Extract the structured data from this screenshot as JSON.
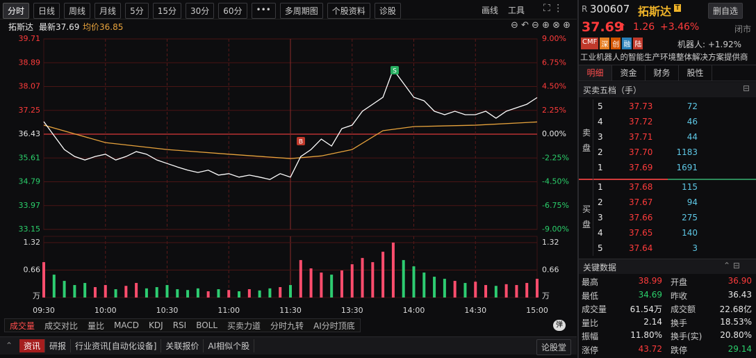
{
  "toolbar": {
    "periods": [
      "分时",
      "日线",
      "周线",
      "月线",
      "5分",
      "15分",
      "30分",
      "60分",
      "•••",
      "多周期图",
      "个股资料",
      "诊股"
    ],
    "tools": [
      "画线",
      "工具"
    ]
  },
  "info": {
    "name": "拓斯达",
    "latest": "最新37.69",
    "avg": "均价36.85"
  },
  "chart": {
    "type": "line",
    "x": [
      "09:30",
      "09:35",
      "09:40",
      "09:45",
      "09:50",
      "09:55",
      "10:00",
      "10:05",
      "10:10",
      "10:15",
      "10:20",
      "10:25",
      "10:30",
      "10:35",
      "10:40",
      "10:45",
      "10:50",
      "10:55",
      "11:00",
      "11:05",
      "11:10",
      "11:15",
      "11:20",
      "11:25",
      "11:30",
      "13:05",
      "13:10",
      "13:15",
      "13:20",
      "13:25",
      "13:30",
      "13:35",
      "13:40",
      "13:45",
      "13:50",
      "13:55",
      "14:00",
      "14:05",
      "14:10",
      "14:15",
      "14:20",
      "14:25",
      "14:30",
      "14:35",
      "14:40",
      "14:45",
      "14:50",
      "14:55",
      "15:00"
    ],
    "series": [
      {
        "color": "#ffffff",
        "values": [
          36.86,
          36.38,
          35.9,
          35.66,
          35.54,
          35.66,
          35.74,
          35.54,
          35.66,
          35.83,
          35.74,
          35.54,
          35.42,
          35.3,
          35.19,
          35.11,
          35.19,
          35.02,
          35.07,
          34.95,
          35.02,
          34.95,
          34.87,
          35.07,
          34.95,
          35.66,
          35.9,
          36.26,
          36.02,
          36.62,
          36.74,
          37.22,
          37.46,
          37.7,
          38.66,
          38.18,
          37.7,
          37.58,
          37.22,
          37.1,
          37.22,
          37.1,
          37.1,
          37.22,
          36.98,
          37.22,
          37.34,
          37.46,
          37.69
        ]
      }
    ],
    "avg": {
      "color": "#e8a33c",
      "x": [
        "09:30",
        "10:00",
        "10:30",
        "11:00",
        "11:30",
        "13:15",
        "13:30",
        "13:45",
        "14:00",
        "14:30",
        "15:00"
      ],
      "values": [
        36.74,
        36.14,
        35.9,
        35.74,
        35.59,
        35.68,
        35.9,
        36.55,
        36.69,
        36.74,
        36.85
      ]
    },
    "ylim": [
      33.15,
      39.71
    ],
    "yticks": [
      39.71,
      38.89,
      38.07,
      37.25,
      36.43,
      35.61,
      34.79,
      33.97,
      33.15
    ],
    "y2lim": [
      -9,
      9
    ],
    "y2ticks": [
      {
        "value": 9,
        "label": "9.00%"
      },
      {
        "value": 6.75,
        "label": "6.75%"
      },
      {
        "value": 4.5,
        "label": "4.50%"
      },
      {
        "value": 2.25,
        "label": "2.25%"
      },
      {
        "value": 0,
        "label": "0.00%"
      },
      {
        "value": -2.25,
        "label": "-2.25%"
      },
      {
        "value": -4.5,
        "label": "-4.50%"
      },
      {
        "value": -6.75,
        "label": "-6.75%"
      },
      {
        "value": -9,
        "label": "-9.00%"
      }
    ],
    "xticks": [
      "09:30",
      "10:00",
      "10:30",
      "11:00",
      "11:30",
      "13:30",
      "14:00",
      "14:30",
      "15:00"
    ],
    "markers": [
      "B",
      "S"
    ],
    "volume": {
      "values": [
        0.85,
        0.55,
        0.4,
        0.3,
        0.35,
        0.25,
        0.3,
        0.2,
        0.28,
        0.35,
        0.22,
        0.25,
        0.3,
        0.2,
        0.18,
        0.22,
        0.15,
        0.2,
        0.18,
        0.15,
        0.2,
        0.17,
        0.22,
        0.25,
        0.3,
        0.9,
        0.7,
        0.6,
        0.55,
        0.65,
        0.8,
        0.95,
        0.85,
        1.1,
        1.32,
        0.9,
        0.75,
        0.6,
        0.5,
        0.45,
        0.4,
        0.35,
        0.38,
        0.3,
        0.28,
        0.32,
        0.3,
        0.35,
        0.45
      ],
      "ylim": [
        0,
        1.32
      ],
      "yticks": [
        1.32,
        0.66
      ],
      "unit": "万",
      "up_color": "#ff4d6d",
      "down_color": "#2ecc71"
    }
  },
  "indicators": [
    "成交量",
    "成交对比",
    "量比",
    "MACD",
    "KDJ",
    "RSI",
    "BOLL",
    "买卖力道",
    "分时九转",
    "AI分时顶底"
  ],
  "indicator_toggle": "弹",
  "bottom": {
    "tabs": [
      "资讯",
      "研报",
      "行业资讯[自动化设备]",
      "关联报价",
      "AI相似个股"
    ],
    "forum": "论股堂"
  },
  "quote": {
    "prefix": "R",
    "code": "300607",
    "name": "拓斯达",
    "badge": "T",
    "button": "删自选",
    "price": "37.69",
    "change": "1.26",
    "pct": "+3.46%",
    "status": "闭市",
    "tags": [
      "CMF",
      "深",
      "创",
      "融",
      "陆"
    ],
    "concept": "机器人: +1.92%",
    "desc": "工业机器人的智能生产环境整体解决方案提供商",
    "tabs": [
      "明细",
      "资金",
      "财务",
      "股性"
    ],
    "book_title": "买卖五档（手）",
    "sell_label": "卖盘",
    "buy_label": "买盘",
    "sell": [
      [
        "5",
        "37.73",
        "72"
      ],
      [
        "4",
        "37.72",
        "46"
      ],
      [
        "3",
        "37.71",
        "44"
      ],
      [
        "2",
        "37.70",
        "1183"
      ],
      [
        "1",
        "37.69",
        "1691"
      ]
    ],
    "buy": [
      [
        "1",
        "37.68",
        "115"
      ],
      [
        "2",
        "37.67",
        "94"
      ],
      [
        "3",
        "37.66",
        "275"
      ],
      [
        "4",
        "37.65",
        "140"
      ],
      [
        "5",
        "37.64",
        "3"
      ]
    ],
    "key_title": "关键数据",
    "key": [
      [
        "最高",
        "38.99",
        "开盘",
        "36.90"
      ],
      [
        "最低",
        "34.69",
        "昨收",
        "36.43"
      ],
      [
        "成交量",
        "61.54万",
        "成交额",
        "22.68亿"
      ],
      [
        "量比",
        "2.14",
        "换手",
        "18.53%"
      ],
      [
        "振幅",
        "11.80%",
        "换手(实)",
        "20.80%"
      ],
      [
        "涨停",
        "43.72",
        "跌停",
        "29.14"
      ]
    ]
  }
}
